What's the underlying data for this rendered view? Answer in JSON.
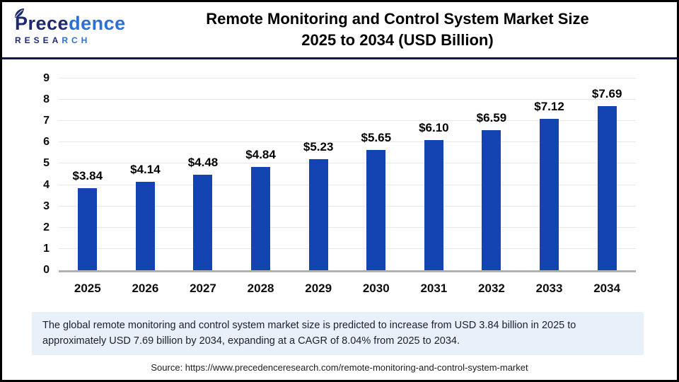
{
  "header": {
    "logo": {
      "brand_part1": "Prece",
      "brand_part2": "dence",
      "sub_part1": "RESEA",
      "sub_part2": "RCH"
    },
    "title_line1": "Remote Monitoring and Control System Market Size",
    "title_line2": "2025 to 2034 (USD Billion)"
  },
  "chart_data": {
    "type": "bar",
    "title": "Remote Monitoring and Control System Market Size 2025 to 2034 (USD Billion)",
    "categories": [
      "2025",
      "2026",
      "2027",
      "2028",
      "2029",
      "2030",
      "2031",
      "2032",
      "2033",
      "2034"
    ],
    "values": [
      3.84,
      4.14,
      4.48,
      4.84,
      5.23,
      5.65,
      6.1,
      6.59,
      7.12,
      7.69
    ],
    "value_labels": [
      "$3.84",
      "$4.14",
      "$4.48",
      "$4.84",
      "$5.23",
      "$5.65",
      "$6.10",
      "$6.59",
      "$7.12",
      "$7.69"
    ],
    "xlabel": "",
    "ylabel": "",
    "ylim": [
      0,
      9
    ],
    "yticks": [
      0,
      1,
      2,
      3,
      4,
      5,
      6,
      7,
      8,
      9
    ],
    "grid": true,
    "legend": false,
    "bar_color": "#1444b2"
  },
  "summary": {
    "text": "The global remote monitoring and control system market size is predicted to increase from USD 3.84 billion in 2025 to approximately USD 7.69 billion by 2034, expanding at a CAGR of 8.04% from 2025 to 2034."
  },
  "source": {
    "text": "Source: https://www.precedenceresearch.com/remote-monitoring-and-control-system-market"
  },
  "colors": {
    "bar": "#1444b2",
    "divider": "#10154a",
    "summary_bg": "#e8f0fa",
    "logo_navy": "#1e2a6e",
    "logo_blue": "#2e6fd4",
    "gridline": "#e8e8e8",
    "axis_line": "#b1b1b1"
  }
}
